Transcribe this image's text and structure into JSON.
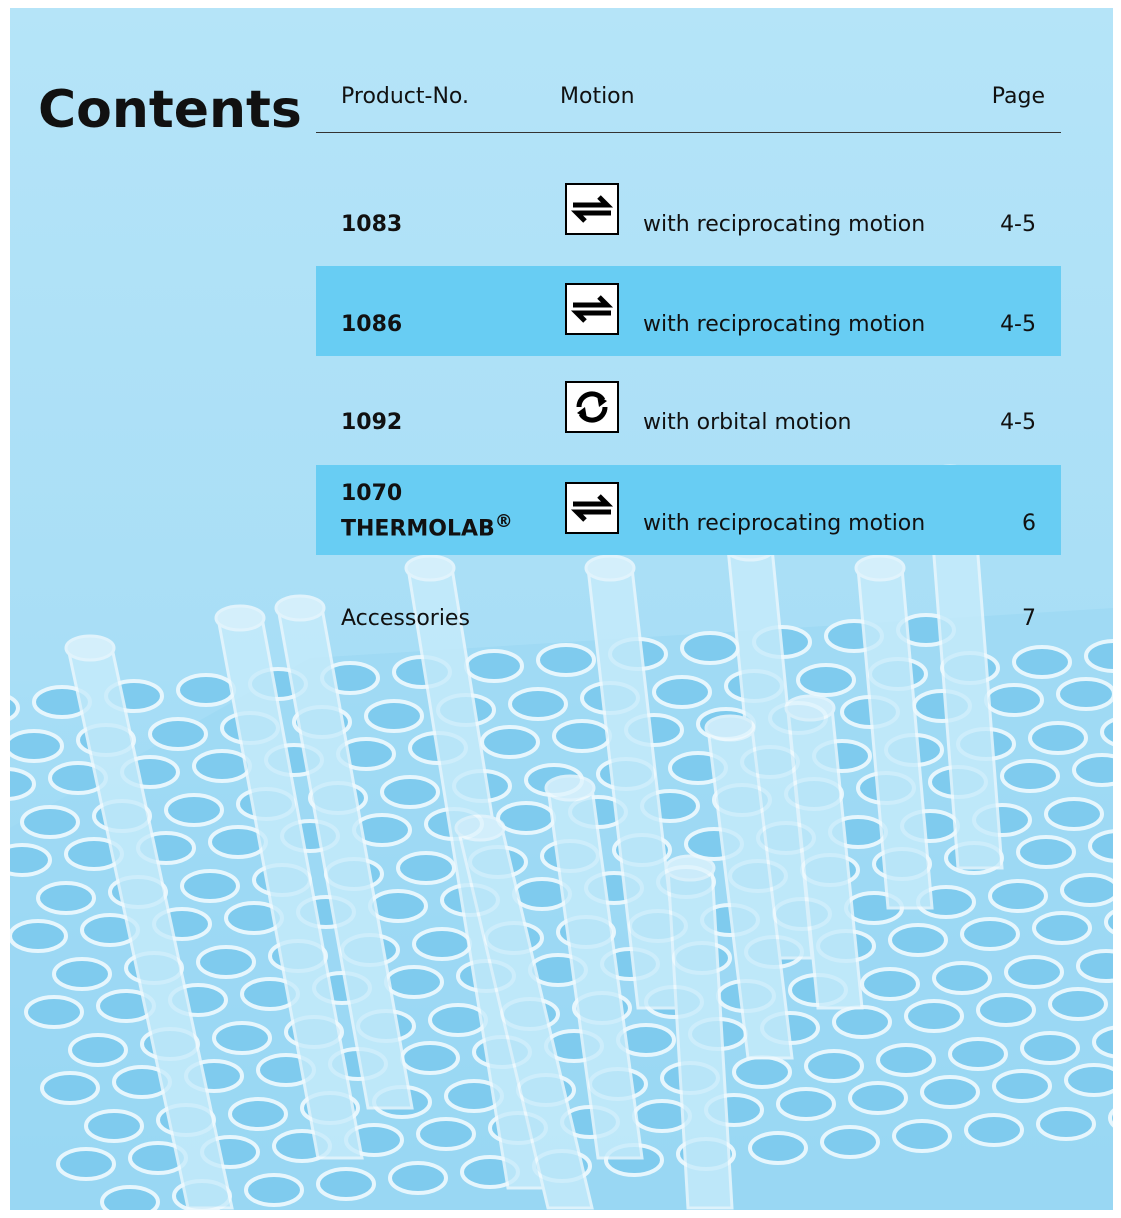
{
  "title": "Contents",
  "table": {
    "headers": [
      "Product-No.",
      "Motion",
      "Page"
    ],
    "rows": [
      {
        "product": "1083",
        "icon": "reciprocating",
        "motion": "with reciprocating motion",
        "page": "4-5",
        "highlight": false
      },
      {
        "product": "1086",
        "icon": "reciprocating",
        "motion": "with reciprocating motion",
        "page": "4-5",
        "highlight": true
      },
      {
        "product": "1092",
        "icon": "orbital",
        "motion": "with orbital motion",
        "page": "4-5",
        "highlight": false
      },
      {
        "product": "1070",
        "name": "THERMOLAB",
        "mark": "®",
        "icon": "reciprocating",
        "motion": "with reciprocating motion",
        "page": "6",
        "highlight": true
      }
    ],
    "accessories": {
      "label": "Accessories",
      "page": "7"
    }
  }
}
